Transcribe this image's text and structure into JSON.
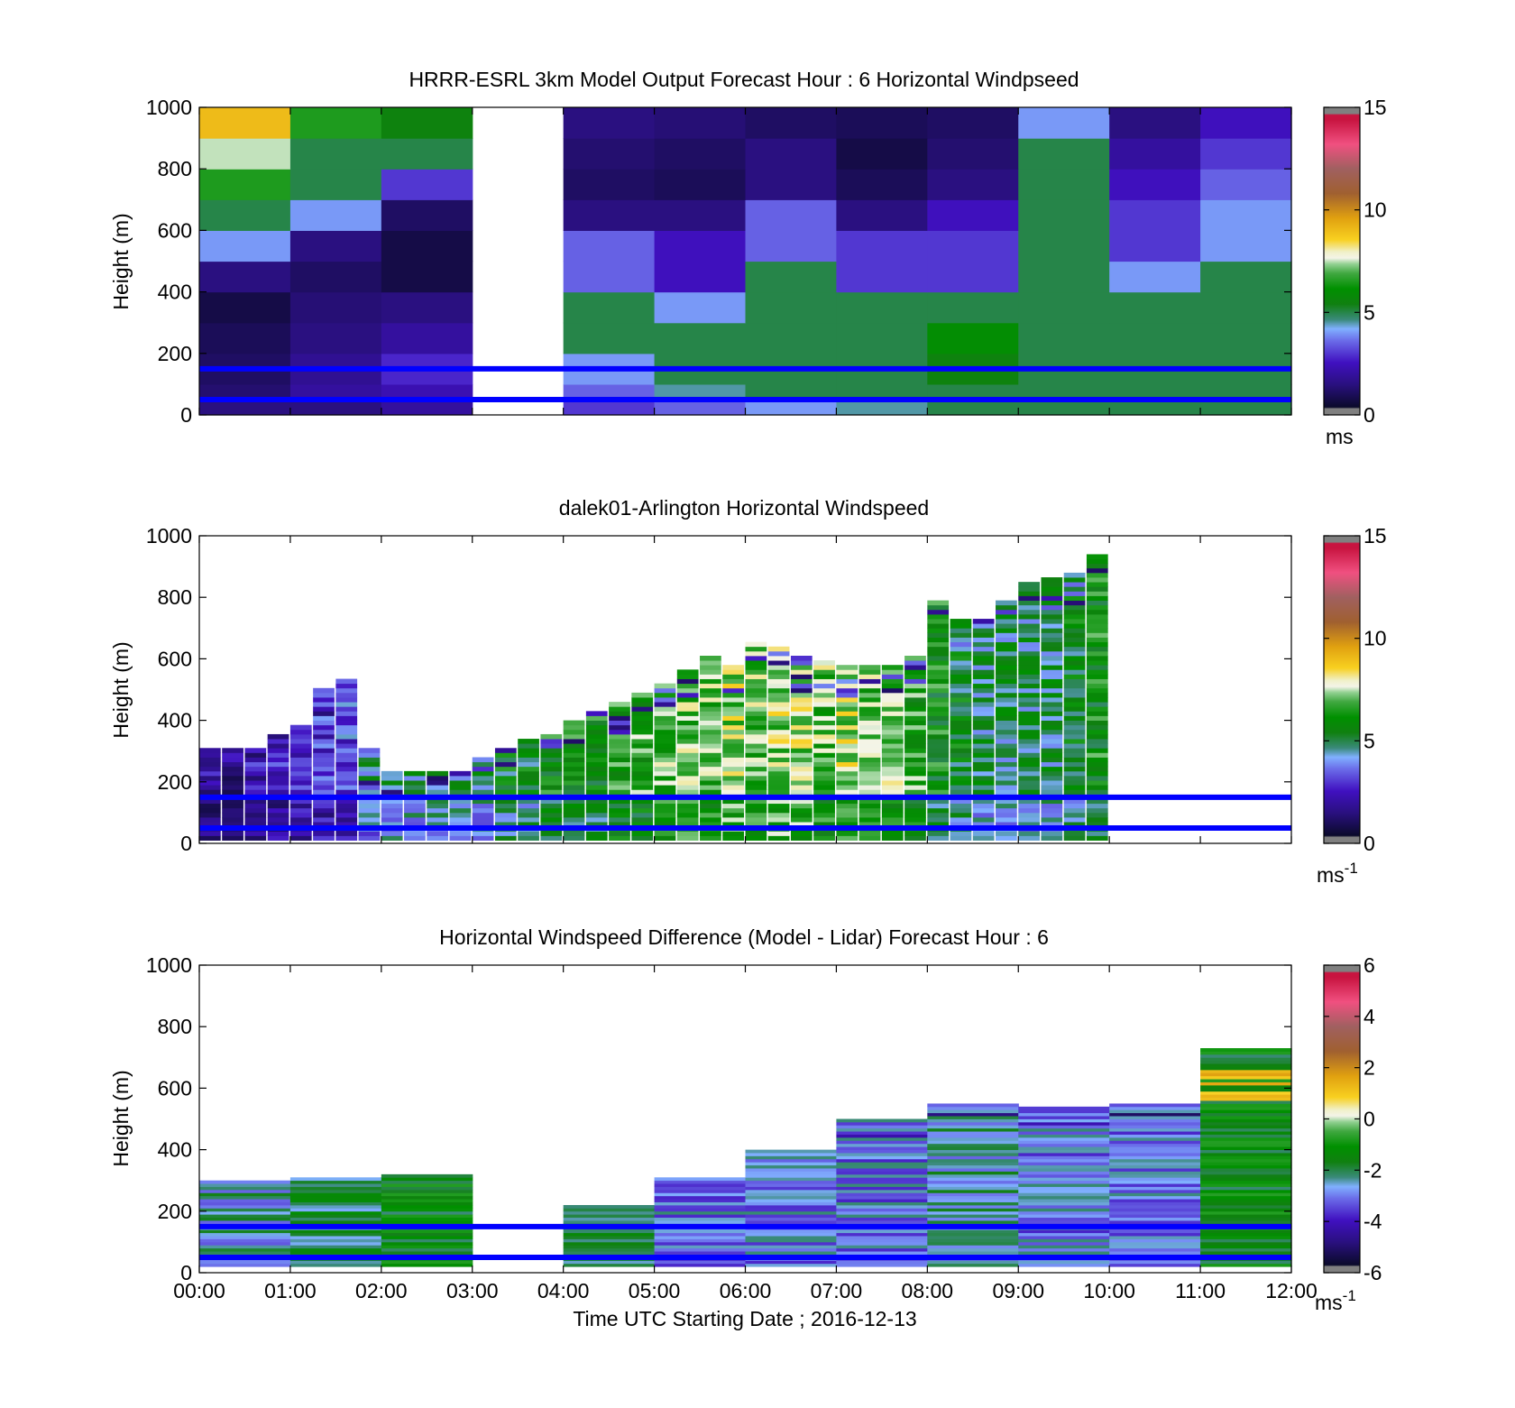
{
  "figure": {
    "time_ticks": [
      "00:00",
      "01:00",
      "02:00",
      "03:00",
      "04:00",
      "05:00",
      "06:00",
      "07:00",
      "08:00",
      "09:00",
      "10:00",
      "11:00",
      "12:00"
    ],
    "xlabel": "Time UTC  Starting Date ; 2016-12-13",
    "ylabel": "Height (m)",
    "reference_lines_m": [
      50,
      150
    ],
    "reference_line_color": "#0000ff"
  },
  "chart_data": [
    {
      "type": "heatmap",
      "title": "HRRR-ESRL 3km Model Output   Forecast Hour : 6 Horizontal Windpseed",
      "ylabel": "Height (m)",
      "ylim": [
        0,
        1000
      ],
      "yticks": [
        "0",
        "200",
        "400",
        "600",
        "800",
        "1000"
      ],
      "colorbar": {
        "min": 0,
        "max": 15,
        "ticks": [
          "0",
          "5",
          "10",
          "15"
        ],
        "unit": "ms"
      },
      "note_missing": "03:00-04:00 column has no data",
      "columns_hour_start": [
        0,
        1,
        2,
        3,
        4,
        5,
        6,
        7,
        8,
        9,
        10,
        11
      ],
      "levels_m": [
        0,
        50,
        100,
        200,
        300,
        400,
        500,
        600,
        700,
        800,
        900,
        1000
      ],
      "values_ms": [
        [
          1.5,
          1.5,
          2.0,
          null,
          3.0,
          3.5,
          4.0,
          4.5,
          5.0,
          5.0,
          5.0,
          5.0
        ],
        [
          1.2,
          2.0,
          2.3,
          null,
          3.5,
          4.5,
          5.0,
          5.0,
          5.0,
          5.0,
          5.0,
          5.0
        ],
        [
          1.0,
          1.8,
          2.8,
          null,
          4.0,
          5.0,
          5.0,
          5.0,
          5.5,
          5.0,
          5.0,
          5.0
        ],
        [
          0.8,
          1.5,
          2.0,
          null,
          5.0,
          5.0,
          5.0,
          5.0,
          6.0,
          5.0,
          5.0,
          5.0
        ],
        [
          0.5,
          1.3,
          1.5,
          null,
          5.0,
          4.0,
          5.0,
          5.0,
          5.0,
          5.0,
          5.0,
          5.0
        ],
        [
          1.5,
          1.0,
          0.5,
          null,
          3.5,
          2.5,
          5.0,
          3.0,
          3.0,
          5.0,
          4.0,
          5.0
        ],
        [
          4.0,
          1.5,
          0.5,
          null,
          3.5,
          2.5,
          3.5,
          3.0,
          3.0,
          5.0,
          3.0,
          4.0
        ],
        [
          5.0,
          4.0,
          1.0,
          null,
          1.5,
          1.5,
          3.5,
          1.5,
          2.5,
          5.0,
          3.0,
          4.0
        ],
        [
          6.5,
          5.0,
          3.0,
          null,
          1.0,
          0.8,
          1.5,
          0.8,
          1.5,
          5.0,
          2.5,
          3.5
        ],
        [
          7.5,
          5.0,
          5.0,
          null,
          1.2,
          1.0,
          1.5,
          0.5,
          1.2,
          5.0,
          2.0,
          3.0
        ],
        [
          9.0,
          6.5,
          5.5,
          null,
          1.5,
          1.3,
          1.0,
          0.8,
          1.0,
          4.0,
          1.5,
          2.5
        ]
      ]
    },
    {
      "type": "heatmap",
      "title": "dalek01-Arlington  Horizontal Windspeed",
      "ylabel": "Height (m)",
      "ylim": [
        0,
        1000
      ],
      "yticks": [
        "0",
        "200",
        "400",
        "600",
        "800",
        "1000"
      ],
      "colorbar": {
        "min": 0,
        "max": 15,
        "ticks": [
          "0",
          "5",
          "10",
          "15"
        ],
        "unit": "ms",
        "unit_sup": "-1"
      },
      "scan_interval_min": 15,
      "profile_top_m": [
        300,
        300,
        300,
        350,
        380,
        500,
        530,
        300,
        230,
        230,
        225,
        230,
        270,
        300,
        330,
        350,
        400,
        430,
        450,
        480,
        520,
        560,
        610,
        580,
        650,
        640,
        600,
        590,
        580,
        570,
        580,
        600,
        780,
        720,
        720,
        780,
        850,
        860,
        880,
        930
      ],
      "profile_mean_ms": [
        2.0,
        1.8,
        2.2,
        2.5,
        2.8,
        3.0,
        3.2,
        4.5,
        5.0,
        5.0,
        5.0,
        5.0,
        5.0,
        5.5,
        5.5,
        6.0,
        6.0,
        6.0,
        6.5,
        6.5,
        7.0,
        7.0,
        7.0,
        7.5,
        7.0,
        7.5,
        7.5,
        7.0,
        7.5,
        7.0,
        7.0,
        6.5,
        6.0,
        5.5,
        5.0,
        5.0,
        5.0,
        5.0,
        5.5,
        6.0
      ]
    },
    {
      "type": "heatmap",
      "title": "Horizontal Windspeed Difference (Model - Lidar) Forecast Hour : 6",
      "ylabel": "Height (m)",
      "ylim": [
        0,
        1000
      ],
      "yticks": [
        "0",
        "200",
        "400",
        "600",
        "800",
        "1000"
      ],
      "colorbar": {
        "min": -6,
        "max": 6,
        "ticks": [
          "-6",
          "-4",
          "-2",
          "0",
          "2",
          "4",
          "6"
        ],
        "unit": "ms",
        "unit_sup": "-1"
      },
      "columns_hour_start": [
        0,
        1,
        2,
        3,
        4,
        5,
        6,
        7,
        8,
        9,
        10,
        11
      ],
      "column_top_m": [
        295,
        305,
        315,
        null,
        215,
        310,
        400,
        495,
        550,
        535,
        545,
        730
      ],
      "column_mean_diff_ms": [
        -2.5,
        -2.0,
        -1.5,
        null,
        -2.0,
        -3.0,
        -3.0,
        -3.0,
        -2.5,
        -3.0,
        -3.0,
        -1.5
      ]
    }
  ]
}
